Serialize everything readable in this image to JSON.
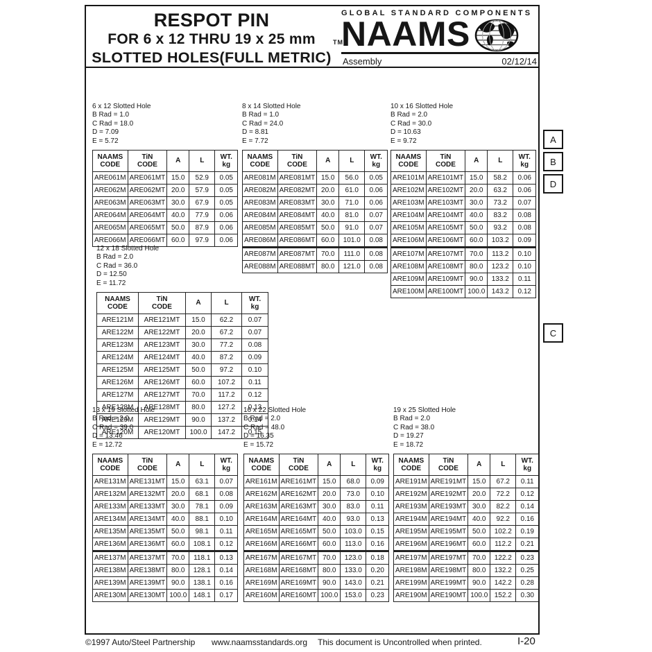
{
  "header": {
    "title_line1": "RESPOT PIN",
    "title_line2": "FOR 6 x 12 THRU 19 x 25 mm",
    "title_line3": "SLOTTED HOLES(FULL METRIC)",
    "trademark": "TM",
    "brand_tagline": "GLOBAL STANDARD COMPONENTS",
    "brand_name": "NAAMS",
    "globe_icon": "globe-icon",
    "division": "Assembly",
    "date": "02/12/14"
  },
  "columns": [
    {
      "top": "NAAMS",
      "bottom": "CODE"
    },
    {
      "top": "TiN",
      "bottom": "CODE"
    },
    {
      "top": "A",
      "bottom": ""
    },
    {
      "top": "L",
      "bottom": ""
    },
    {
      "top": "WT.",
      "bottom": "kg"
    }
  ],
  "tables": [
    {
      "title": "6 x 12 Slotted Hole",
      "specs": [
        "B Rad = 1.0",
        "C Rad = 18.0",
        "D = 7.09",
        "E = 5.72"
      ],
      "split_after": null,
      "rows": [
        [
          "ARE061M",
          "ARE061MT",
          "15.0",
          "52.9",
          "0.05"
        ],
        [
          "ARE062M",
          "ARE062MT",
          "20.0",
          "57.9",
          "0.05"
        ],
        [
          "ARE063M",
          "ARE063MT",
          "30.0",
          "67.9",
          "0.05"
        ],
        [
          "ARE064M",
          "ARE064MT",
          "40.0",
          "77.9",
          "0.06"
        ],
        [
          "ARE065M",
          "ARE065MT",
          "50.0",
          "87.9",
          "0.06"
        ],
        [
          "ARE066M",
          "ARE066MT",
          "60.0",
          "97.9",
          "0.06"
        ]
      ]
    },
    {
      "title": "8 x 14 Slotted Hole",
      "specs": [
        "B Rad = 1.0",
        "C Rad = 24.0",
        "D = 8.81",
        "E = 7.72"
      ],
      "split_after": 6,
      "rows": [
        [
          "ARE081M",
          "ARE081MT",
          "15.0",
          "56.0",
          "0.05"
        ],
        [
          "ARE082M",
          "ARE082MT",
          "20.0",
          "61.0",
          "0.06"
        ],
        [
          "ARE083M",
          "ARE083MT",
          "30.0",
          "71.0",
          "0.06"
        ],
        [
          "ARE084M",
          "ARE084MT",
          "40.0",
          "81.0",
          "0.07"
        ],
        [
          "ARE085M",
          "ARE085MT",
          "50.0",
          "91.0",
          "0.07"
        ],
        [
          "ARE086M",
          "ARE086MT",
          "60.0",
          "101.0",
          "0.08"
        ],
        [
          "ARE087M",
          "ARE087MT",
          "70.0",
          "111.0",
          "0.08"
        ],
        [
          "ARE088M",
          "ARE088MT",
          "80.0",
          "121.0",
          "0.08"
        ]
      ]
    },
    {
      "title": "10 x 16 Slotted Hole",
      "specs": [
        "B Rad = 2.0",
        "C Rad = 30.0",
        "D = 10.63",
        "E = 9.72"
      ],
      "split_after": 6,
      "rows": [
        [
          "ARE101M",
          "ARE101MT",
          "15.0",
          "58.2",
          "0.06"
        ],
        [
          "ARE102M",
          "ARE102MT",
          "20.0",
          "63.2",
          "0.06"
        ],
        [
          "ARE103M",
          "ARE103MT",
          "30.0",
          "73.2",
          "0.07"
        ],
        [
          "ARE104M",
          "ARE104MT",
          "40.0",
          "83.2",
          "0.08"
        ],
        [
          "ARE105M",
          "ARE105MT",
          "50.0",
          "93.2",
          "0.08"
        ],
        [
          "ARE106M",
          "ARE106MT",
          "60.0",
          "103.2",
          "0.09"
        ],
        [
          "ARE107M",
          "ARE107MT",
          "70.0",
          "113.2",
          "0.10"
        ],
        [
          "ARE108M",
          "ARE108MT",
          "80.0",
          "123.2",
          "0.10"
        ],
        [
          "ARE109M",
          "ARE109MT",
          "90.0",
          "133.2",
          "0.11"
        ],
        [
          "ARE100M",
          "ARE100MT",
          "100.0",
          "143.2",
          "0.12"
        ]
      ]
    },
    {
      "title": "12 x 18 Slotted Hole",
      "specs": [
        "B Rad = 2.0",
        "C Rad = 36.0",
        "D = 12.50",
        "E = 11.72"
      ],
      "split_after": null,
      "rows": [
        [
          "ARE121M",
          "ARE121MT",
          "15.0",
          "62.2",
          "0.07"
        ],
        [
          "ARE122M",
          "ARE122MT",
          "20.0",
          "67.2",
          "0.07"
        ],
        [
          "ARE123M",
          "ARE123MT",
          "30.0",
          "77.2",
          "0.08"
        ],
        [
          "ARE124M",
          "ARE124MT",
          "40.0",
          "87.2",
          "0.09"
        ],
        [
          "ARE125M",
          "ARE125MT",
          "50.0",
          "97.2",
          "0.10"
        ],
        [
          "ARE126M",
          "ARE126MT",
          "60.0",
          "107.2",
          "0.11"
        ],
        [
          "ARE127M",
          "ARE127MT",
          "70.0",
          "117.2",
          "0.12"
        ],
        [
          "ARE128M",
          "ARE128MT",
          "80.0",
          "127.2",
          "0.13"
        ],
        [
          "ARE129M",
          "ARE129MT",
          "90.0",
          "137.2",
          "0.14"
        ],
        [
          "ARE120M",
          "ARE120MT",
          "100.0",
          "147.2",
          "0.15"
        ]
      ]
    },
    {
      "title": "13 x 19 Slotted Hole",
      "specs": [
        "B Rad = 2.0",
        "C Rad = 39.0",
        "D = 13.46",
        "E = 12.72"
      ],
      "split_after": 6,
      "rows": [
        [
          "ARE131M",
          "ARE131MT",
          "15.0",
          "63.1",
          "0.07"
        ],
        [
          "ARE132M",
          "ARE132MT",
          "20.0",
          "68.1",
          "0.08"
        ],
        [
          "ARE133M",
          "ARE133MT",
          "30.0",
          "78.1",
          "0.09"
        ],
        [
          "ARE134M",
          "ARE134MT",
          "40.0",
          "88.1",
          "0.10"
        ],
        [
          "ARE135M",
          "ARE135MT",
          "50.0",
          "98.1",
          "0.11"
        ],
        [
          "ARE136M",
          "ARE136MT",
          "60.0",
          "108.1",
          "0.12"
        ],
        [
          "ARE137M",
          "ARE137MT",
          "70.0",
          "118.1",
          "0.13"
        ],
        [
          "ARE138M",
          "ARE138MT",
          "80.0",
          "128.1",
          "0.14"
        ],
        [
          "ARE139M",
          "ARE139MT",
          "90.0",
          "138.1",
          "0.16"
        ],
        [
          "ARE130M",
          "ARE130MT",
          "100.0",
          "148.1",
          "0.17"
        ]
      ]
    },
    {
      "title": "16 x 22 Slotted Hole",
      "specs": [
        "B Rad = 2.0",
        "C Rad = 48.0",
        "D = 16.35",
        "E = 15.72"
      ],
      "split_after": 6,
      "rows": [
        [
          "ARE161M",
          "ARE161MT",
          "15.0",
          "68.0",
          "0.09"
        ],
        [
          "ARE162M",
          "ARE162MT",
          "20.0",
          "73.0",
          "0.10"
        ],
        [
          "ARE163M",
          "ARE163MT",
          "30.0",
          "83.0",
          "0.11"
        ],
        [
          "ARE164M",
          "ARE164MT",
          "40.0",
          "93.0",
          "0.13"
        ],
        [
          "ARE165M",
          "ARE165MT",
          "50.0",
          "103.0",
          "0.15"
        ],
        [
          "ARE166M",
          "ARE166MT",
          "60.0",
          "113.0",
          "0.16"
        ],
        [
          "ARE167M",
          "ARE167MT",
          "70.0",
          "123.0",
          "0.18"
        ],
        [
          "ARE168M",
          "ARE168MT",
          "80.0",
          "133.0",
          "0.20"
        ],
        [
          "ARE169M",
          "ARE169MT",
          "90.0",
          "143.0",
          "0.21"
        ],
        [
          "ARE160M",
          "ARE160MT",
          "100.0",
          "153.0",
          "0.23"
        ]
      ]
    },
    {
      "title": "19 x 25 Slotted Hole",
      "specs": [
        "B Rad = 2.0",
        "C Rad = 38.0",
        "D = 19.27",
        "E = 18.72"
      ],
      "split_after": 6,
      "rows": [
        [
          "ARE191M",
          "ARE191MT",
          "15.0",
          "67.2",
          "0.11"
        ],
        [
          "ARE192M",
          "ARE192MT",
          "20.0",
          "72.2",
          "0.12"
        ],
        [
          "ARE193M",
          "ARE193MT",
          "30.0",
          "82.2",
          "0.14"
        ],
        [
          "ARE194M",
          "ARE194MT",
          "40.0",
          "92.2",
          "0.16"
        ],
        [
          "ARE195M",
          "ARE195MT",
          "50.0",
          "102.2",
          "0.19"
        ],
        [
          "ARE196M",
          "ARE196MT",
          "60.0",
          "112.2",
          "0.21"
        ],
        [
          "ARE197M",
          "ARE197MT",
          "70.0",
          "122.2",
          "0.23"
        ],
        [
          "ARE198M",
          "ARE198MT",
          "80.0",
          "132.2",
          "0.25"
        ],
        [
          "ARE199M",
          "ARE199MT",
          "90.0",
          "142.2",
          "0.28"
        ],
        [
          "ARE190M",
          "ARE190MT",
          "100.0",
          "152.2",
          "0.30"
        ]
      ]
    }
  ],
  "side_labels": [
    "A",
    "B",
    "D",
    "C"
  ],
  "footer": {
    "copyright": "©1997 Auto/Steel Partnership",
    "website": "www.naamsstandards.org",
    "notice": "This document is Uncontrolled when printed.",
    "page_number": "I-20"
  }
}
